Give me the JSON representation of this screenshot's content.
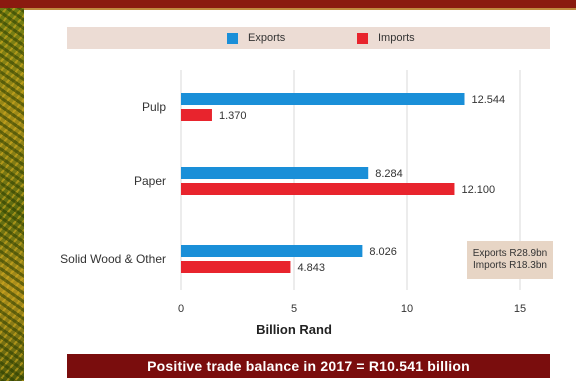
{
  "chart_data": {
    "type": "bar",
    "orientation": "horizontal",
    "categories": [
      "Pulp",
      "Paper",
      "Solid Wood & Other"
    ],
    "series": [
      {
        "name": "Exports",
        "values": [
          12.544,
          8.284,
          8.026
        ],
        "labels": [
          "12.544",
          "8.284",
          "8.026"
        ],
        "color": "#1a8fd8"
      },
      {
        "name": "Imports",
        "values": [
          1.37,
          12.1,
          4.843
        ],
        "labels": [
          "1.370",
          "12.100",
          "4.843"
        ],
        "color": "#e8242d"
      }
    ],
    "xlabel": "Billion Rand",
    "xlim": [
      0,
      16
    ],
    "xticks": [
      0,
      5,
      10,
      15
    ],
    "grid": "vertical",
    "legend_position": "top"
  },
  "summary": {
    "line1": "Exports R28.9bn",
    "line2": "Imports R18.3bn"
  },
  "footer": {
    "text": "Positive trade balance in 2017  = R10.541 billion"
  }
}
